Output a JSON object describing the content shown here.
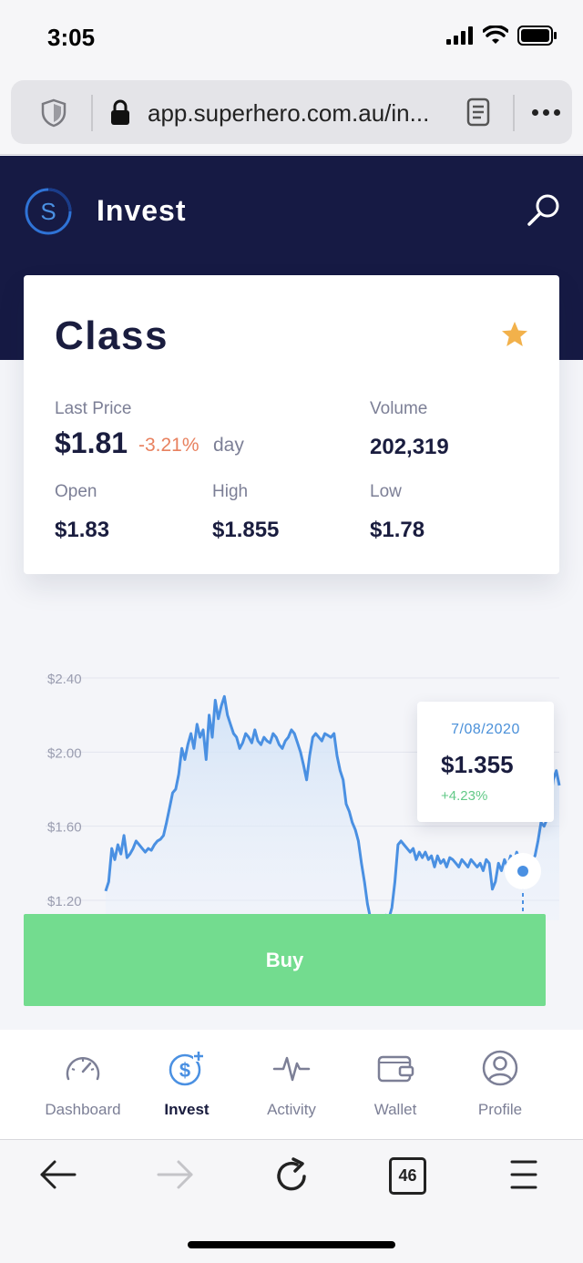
{
  "status_bar": {
    "time": "3:05"
  },
  "browser": {
    "url": "app.superhero.com.au/in...",
    "tab_count": "46"
  },
  "header": {
    "logo_letter": "S",
    "title": "Invest"
  },
  "stock": {
    "name": "Class",
    "last_price_label": "Last Price",
    "last_price": "$1.81",
    "change": "-3.21%",
    "change_period": "day",
    "volume_label": "Volume",
    "volume": "202,319",
    "open_label": "Open",
    "open": "$1.83",
    "high_label": "High",
    "high": "$1.855",
    "low_label": "Low",
    "low": "$1.78",
    "star_color": "#f2b14b"
  },
  "chart_data": {
    "type": "area",
    "ylim": [
      1.2,
      2.4
    ],
    "y_ticks": [
      "$2.40",
      "$2.00",
      "$1.60",
      "$1.20"
    ],
    "y_tick_values": [
      2.4,
      2.0,
      1.6,
      1.2
    ],
    "series_color": "#4a90e2",
    "values": [
      1.25,
      1.3,
      1.48,
      1.42,
      1.5,
      1.45,
      1.55,
      1.43,
      1.45,
      1.48,
      1.52,
      1.5,
      1.48,
      1.46,
      1.48,
      1.47,
      1.5,
      1.52,
      1.53,
      1.55,
      1.62,
      1.7,
      1.78,
      1.8,
      1.88,
      2.02,
      1.96,
      2.04,
      2.1,
      2.02,
      2.15,
      2.08,
      2.12,
      1.96,
      2.2,
      2.08,
      2.28,
      2.18,
      2.25,
      2.3,
      2.2,
      2.15,
      2.1,
      2.08,
      2.02,
      2.05,
      2.1,
      2.08,
      2.05,
      2.12,
      2.06,
      2.04,
      2.08,
      2.06,
      2.05,
      2.1,
      2.08,
      2.04,
      2.02,
      2.06,
      2.08,
      2.12,
      2.1,
      2.05,
      2.0,
      1.93,
      1.85,
      1.98,
      2.08,
      2.1,
      2.08,
      2.06,
      2.1,
      2.09,
      2.08,
      2.1,
      1.98,
      1.9,
      1.85,
      1.72,
      1.68,
      1.62,
      1.58,
      1.52,
      1.4,
      1.3,
      1.18,
      1.1,
      1.06,
      1.04,
      1.05,
      1.08,
      1.12,
      1.1,
      1.16,
      1.3,
      1.5,
      1.52,
      1.5,
      1.48,
      1.46,
      1.48,
      1.42,
      1.46,
      1.43,
      1.46,
      1.42,
      1.44,
      1.38,
      1.44,
      1.4,
      1.42,
      1.38,
      1.43,
      1.42,
      1.4,
      1.38,
      1.42,
      1.4,
      1.38,
      1.42,
      1.4,
      1.38,
      1.4,
      1.36,
      1.42,
      1.4,
      1.26,
      1.3,
      1.4,
      1.36,
      1.42,
      1.38,
      1.44,
      1.4,
      1.46,
      1.42,
      1.4,
      1.44,
      1.4,
      1.42,
      1.44,
      1.52,
      1.62,
      1.6,
      1.64,
      1.72,
      1.85,
      1.9,
      1.82
    ]
  },
  "tooltip": {
    "date": "7/08/2020",
    "value": "$1.355",
    "change": "+4.23%"
  },
  "buy_label": "Buy",
  "nav": [
    {
      "label": "Dashboard",
      "icon": "gauge-icon"
    },
    {
      "label": "Invest",
      "icon": "dollar-plus-icon"
    },
    {
      "label": "Activity",
      "icon": "pulse-icon"
    },
    {
      "label": "Wallet",
      "icon": "wallet-icon"
    },
    {
      "label": "Profile",
      "icon": "user-icon"
    }
  ],
  "colors": {
    "navy": "#161a44",
    "green": "#73dc8f",
    "blue": "#4a90e2",
    "orange": "#e8815f"
  }
}
